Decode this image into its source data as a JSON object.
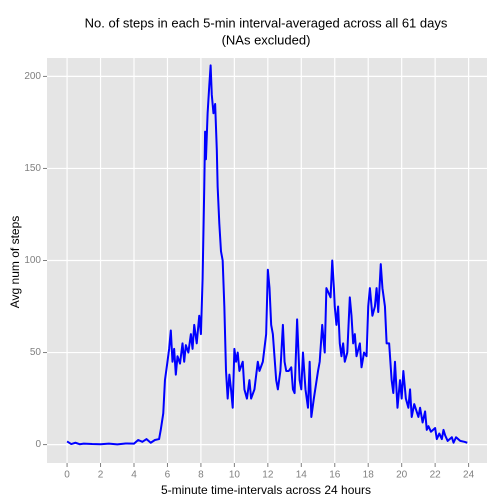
{
  "chart_data": {
    "type": "line",
    "title": "No. of steps in each 5-min interval-averaged across all 61 days",
    "subtitle": "(NAs excluded)",
    "x_label": "5-minute time-intervals across 24 hours",
    "y_label": "Avg num of steps",
    "xlim": [
      -1.2,
      25.1
    ],
    "ylim": [
      -10,
      210
    ],
    "xticks": [
      0,
      2,
      4,
      6,
      8,
      10,
      12,
      14,
      16,
      18,
      20,
      22,
      24
    ],
    "yticks": [
      0,
      50,
      100,
      150,
      200
    ],
    "grid": true,
    "series": [
      {
        "name": "Avg num of steps",
        "color": "#0000ff",
        "x": [
          0,
          0.25,
          0.5,
          0.75,
          1,
          1.5,
          2,
          2.5,
          3,
          3.5,
          4,
          4.25,
          4.5,
          4.75,
          5,
          5.25,
          5.5,
          5.6,
          5.75,
          5.85,
          6,
          6.1,
          6.2,
          6.3,
          6.4,
          6.5,
          6.6,
          6.75,
          6.9,
          7,
          7.1,
          7.25,
          7.4,
          7.5,
          7.6,
          7.75,
          7.9,
          8,
          8.1,
          8.2,
          8.25,
          8.3,
          8.4,
          8.5,
          8.58,
          8.65,
          8.75,
          8.85,
          8.95,
          9,
          9.1,
          9.2,
          9.3,
          9.4,
          9.5,
          9.6,
          9.7,
          9.8,
          9.9,
          10,
          10.1,
          10.2,
          10.3,
          10.5,
          10.6,
          10.75,
          10.9,
          11,
          11.2,
          11.4,
          11.5,
          11.7,
          11.9,
          12,
          12.1,
          12.2,
          12.3,
          12.5,
          12.6,
          12.75,
          12.9,
          13,
          13.1,
          13.25,
          13.4,
          13.5,
          13.6,
          13.75,
          13.9,
          14,
          14.1,
          14.25,
          14.4,
          14.5,
          14.6,
          14.75,
          15,
          15.1,
          15.25,
          15.4,
          15.5,
          15.75,
          15.85,
          15.95,
          16,
          16.1,
          16.2,
          16.3,
          16.4,
          16.5,
          16.6,
          16.75,
          16.9,
          17,
          17.1,
          17.2,
          17.3,
          17.5,
          17.6,
          17.75,
          17.9,
          18,
          18.1,
          18.25,
          18.4,
          18.5,
          18.6,
          18.75,
          18.85,
          19,
          19.1,
          19.25,
          19.4,
          19.5,
          19.6,
          19.75,
          19.9,
          20,
          20.1,
          20.25,
          20.4,
          20.5,
          20.6,
          20.75,
          21,
          21.1,
          21.25,
          21.4,
          21.5,
          21.6,
          21.75,
          22,
          22.1,
          22.25,
          22.4,
          22.5,
          22.6,
          22.75,
          23,
          23.1,
          23.25,
          23.5,
          23.75,
          23.92
        ],
        "values": [
          1.7,
          0.3,
          1,
          0.2,
          0.5,
          0.3,
          0.2,
          0.5,
          0.1,
          0.6,
          0.5,
          2.5,
          1.5,
          3,
          1,
          2.5,
          3,
          8,
          17,
          35,
          45,
          52,
          62,
          45,
          52,
          38,
          48,
          44,
          55,
          45,
          54,
          50,
          60,
          52,
          65,
          55,
          70,
          60,
          90,
          140,
          170,
          155,
          180,
          195,
          206,
          190,
          180,
          185,
          160,
          140,
          120,
          105,
          100,
          75,
          40,
          25,
          38,
          30,
          20,
          52,
          45,
          50,
          40,
          45,
          30,
          25,
          35,
          25,
          30,
          45,
          40,
          45,
          60,
          95,
          85,
          65,
          60,
          35,
          30,
          40,
          65,
          45,
          40,
          40,
          42,
          30,
          28,
          68,
          35,
          30,
          50,
          30,
          20,
          45,
          15,
          25,
          40,
          45,
          65,
          50,
          85,
          80,
          100,
          85,
          75,
          65,
          75,
          55,
          48,
          55,
          45,
          50,
          80,
          70,
          55,
          60,
          48,
          55,
          42,
          50,
          48,
          75,
          85,
          70,
          75,
          85,
          72,
          98,
          85,
          75,
          55,
          55,
          35,
          28,
          45,
          20,
          35,
          25,
          40,
          25,
          20,
          30,
          15,
          22,
          15,
          20,
          12,
          18,
          8,
          10,
          7,
          9,
          3,
          6,
          3,
          8,
          5,
          2,
          4,
          1,
          4,
          2,
          1.5,
          1
        ]
      }
    ]
  }
}
